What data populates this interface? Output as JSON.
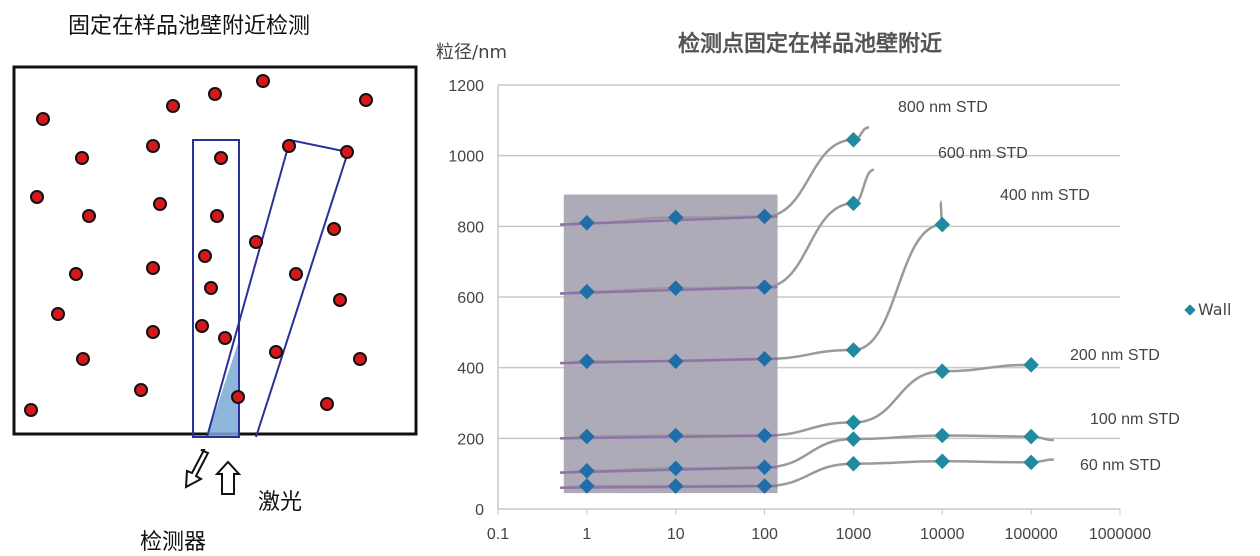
{
  "diagram": {
    "title": "固定在样品池壁附近检测",
    "laser_label": "激光",
    "detector_label": "检测器"
  },
  "chart_data": {
    "type": "scatter",
    "title": "检测点固定在样品池壁附近",
    "ylabel": "粒径/nm",
    "xlabel": "",
    "xscale": "log",
    "xlim": [
      0.1,
      1000000
    ],
    "ylim": [
      0,
      1200
    ],
    "x_ticks": [
      "0.1",
      "1",
      "10",
      "100",
      "1000",
      "10000",
      "100000",
      "1000000"
    ],
    "y_ticks": [
      "0",
      "200",
      "400",
      "600",
      "800",
      "1000",
      "1200"
    ],
    "grid": "horizontal",
    "legend": {
      "entries": [
        "Wall"
      ],
      "position": "right"
    },
    "shaded_region": {
      "x": [
        0.55,
        140
      ],
      "y": [
        45,
        890
      ],
      "color": "#aaa6b4"
    },
    "series": [
      {
        "name": "800 nm STD",
        "x": [
          1,
          10,
          100,
          1000
        ],
        "y": [
          810,
          825,
          828,
          1045
        ]
      },
      {
        "name": "600 nm STD",
        "x": [
          1,
          10,
          100,
          1000
        ],
        "y": [
          615,
          625,
          628,
          865
        ]
      },
      {
        "name": "400 nm STD",
        "x": [
          1,
          10,
          100,
          1000,
          10000
        ],
        "y": [
          418,
          418,
          425,
          450,
          805
        ]
      },
      {
        "name": "200 nm STD",
        "x": [
          1,
          10,
          100,
          1000,
          10000,
          100000
        ],
        "y": [
          205,
          208,
          208,
          245,
          390,
          408
        ]
      },
      {
        "name": "100 nm STD",
        "x": [
          1,
          10,
          100,
          1000,
          10000,
          100000
        ],
        "y": [
          108,
          115,
          118,
          198,
          208,
          205
        ]
      },
      {
        "name": "60 nm STD",
        "x": [
          1,
          10,
          100,
          1000,
          10000,
          100000
        ],
        "y": [
          65,
          65,
          65,
          128,
          135,
          132
        ]
      }
    ],
    "annotations": [
      "800 nm STD",
      "600 nm STD",
      "400 nm STD",
      "200 nm STD",
      "100 nm STD",
      "60 nm STD"
    ]
  }
}
